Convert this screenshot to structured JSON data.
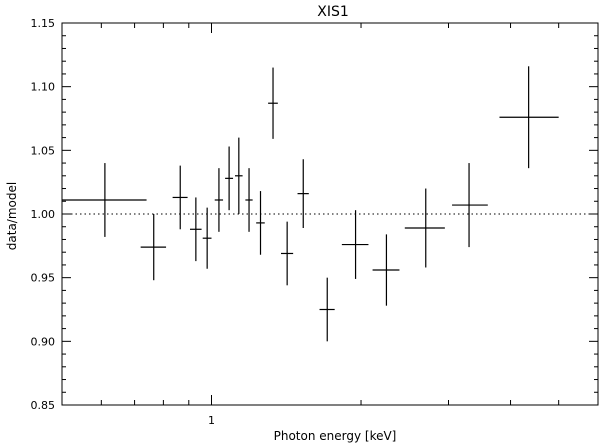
{
  "chart_data": {
    "type": "scatter",
    "title": "XIS1",
    "xlabel": "Photon energy [keV]",
    "ylabel": "data/model",
    "xscale": "log",
    "xlim": [
      0.5,
      6.0
    ],
    "ylim": [
      0.85,
      1.15
    ],
    "yticks": [
      0.85,
      0.9,
      0.95,
      1.0,
      1.05,
      1.1,
      1.15
    ],
    "ytick_labels": [
      "0.85",
      "0.90",
      "0.95",
      "1.00",
      "1.05",
      "1.10",
      "1.15"
    ],
    "xtick_labels": [
      {
        "value": 1,
        "label": "1"
      }
    ],
    "reference_line": {
      "y": 1.0,
      "style": "dotted"
    },
    "grid": false,
    "points": [
      {
        "x": 0.61,
        "y": 1.011,
        "xerr": [
          0.11,
          0.13
        ],
        "yerr": [
          0.029,
          0.029
        ]
      },
      {
        "x": 0.765,
        "y": 0.974,
        "xerr": [
          0.045,
          0.045
        ],
        "yerr": [
          0.026,
          0.026
        ]
      },
      {
        "x": 0.865,
        "y": 1.013,
        "xerr": [
          0.03,
          0.03
        ],
        "yerr": [
          0.025,
          0.025
        ]
      },
      {
        "x": 0.93,
        "y": 0.988,
        "xerr": [
          0.025,
          0.025
        ],
        "yerr": [
          0.025,
          0.025
        ]
      },
      {
        "x": 0.98,
        "y": 0.981,
        "xerr": [
          0.02,
          0.02
        ],
        "yerr": [
          0.024,
          0.024
        ]
      },
      {
        "x": 1.035,
        "y": 1.011,
        "xerr": [
          0.02,
          0.02
        ],
        "yerr": [
          0.025,
          0.025
        ]
      },
      {
        "x": 1.085,
        "y": 1.028,
        "xerr": [
          0.02,
          0.02
        ],
        "yerr": [
          0.025,
          0.025
        ]
      },
      {
        "x": 1.135,
        "y": 1.03,
        "xerr": [
          0.02,
          0.02
        ],
        "yerr": [
          0.03,
          0.03
        ]
      },
      {
        "x": 1.19,
        "y": 1.011,
        "xerr": [
          0.02,
          0.02
        ],
        "yerr": [
          0.025,
          0.025
        ]
      },
      {
        "x": 1.255,
        "y": 0.993,
        "xerr": [
          0.025,
          0.025
        ],
        "yerr": [
          0.025,
          0.025
        ]
      },
      {
        "x": 1.33,
        "y": 1.087,
        "xerr": [
          0.03,
          0.03
        ],
        "yerr": [
          0.028,
          0.028
        ]
      },
      {
        "x": 1.42,
        "y": 0.969,
        "xerr": [
          0.04,
          0.04
        ],
        "yerr": [
          0.025,
          0.025
        ]
      },
      {
        "x": 1.53,
        "y": 1.016,
        "xerr": [
          0.04,
          0.04
        ],
        "yerr": [
          0.027,
          0.027
        ]
      },
      {
        "x": 1.71,
        "y": 0.925,
        "xerr": [
          0.06,
          0.06
        ],
        "yerr": [
          0.025,
          0.025
        ]
      },
      {
        "x": 1.95,
        "y": 0.976,
        "xerr": [
          0.12,
          0.12
        ],
        "yerr": [
          0.027,
          0.027
        ]
      },
      {
        "x": 2.25,
        "y": 0.956,
        "xerr": [
          0.14,
          0.14
        ],
        "yerr": [
          0.028,
          0.028
        ]
      },
      {
        "x": 2.7,
        "y": 0.989,
        "xerr": [
          0.25,
          0.25
        ],
        "yerr": [
          0.031,
          0.031
        ]
      },
      {
        "x": 3.3,
        "y": 1.007,
        "xerr": [
          0.25,
          0.3
        ],
        "yerr": [
          0.033,
          0.033
        ]
      },
      {
        "x": 4.35,
        "y": 1.076,
        "xerr": [
          0.55,
          0.65
        ],
        "yerr": [
          0.04,
          0.04
        ]
      }
    ]
  }
}
